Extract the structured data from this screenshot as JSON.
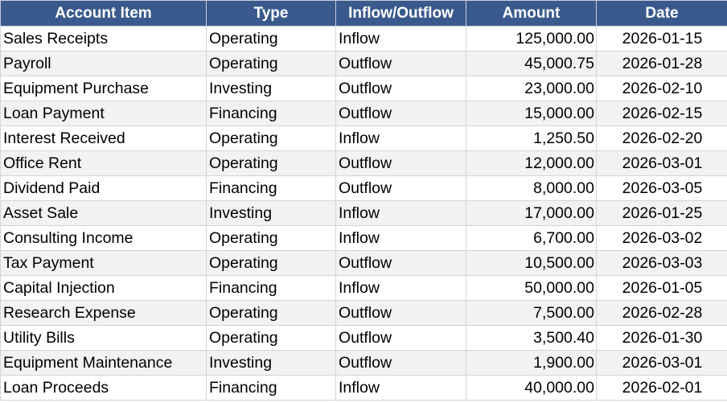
{
  "table": {
    "headers": [
      "Account Item",
      "Type",
      "Inflow/Outflow",
      "Amount",
      "Date"
    ],
    "rows": [
      [
        "Sales Receipts",
        "Operating",
        "Inflow",
        "125,000.00",
        "2026-01-15"
      ],
      [
        "Payroll",
        "Operating",
        "Outflow",
        "45,000.75",
        "2026-01-28"
      ],
      [
        "Equipment Purchase",
        "Investing",
        "Outflow",
        "23,000.00",
        "2026-02-10"
      ],
      [
        "Loan Payment",
        "Financing",
        "Outflow",
        "15,000.00",
        "2026-02-15"
      ],
      [
        "Interest Received",
        "Operating",
        "Inflow",
        "1,250.50",
        "2026-02-20"
      ],
      [
        "Office Rent",
        "Operating",
        "Outflow",
        "12,000.00",
        "2026-03-01"
      ],
      [
        "Dividend Paid",
        "Financing",
        "Outflow",
        "8,000.00",
        "2026-03-05"
      ],
      [
        "Asset Sale",
        "Investing",
        "Inflow",
        "17,000.00",
        "2026-01-25"
      ],
      [
        "Consulting Income",
        "Operating",
        "Inflow",
        "6,700.00",
        "2026-03-02"
      ],
      [
        "Tax Payment",
        "Operating",
        "Outflow",
        "10,500.00",
        "2026-03-03"
      ],
      [
        "Capital Injection",
        "Financing",
        "Inflow",
        "50,000.00",
        "2026-01-05"
      ],
      [
        "Research Expense",
        "Operating",
        "Outflow",
        "7,500.00",
        "2026-02-28"
      ],
      [
        "Utility Bills",
        "Operating",
        "Outflow",
        "3,500.40",
        "2026-01-30"
      ],
      [
        "Equipment Maintenance",
        "Investing",
        "Outflow",
        "1,900.00",
        "2026-03-01"
      ],
      [
        "Loan Proceeds",
        "Financing",
        "Inflow",
        "40,000.00",
        "2026-02-01"
      ]
    ]
  },
  "colors": {
    "header_bg": "#3a5a8e",
    "header_text": "#ffffff",
    "stripe": "#f2f2f2",
    "gridline": "#d4d4d4"
  }
}
